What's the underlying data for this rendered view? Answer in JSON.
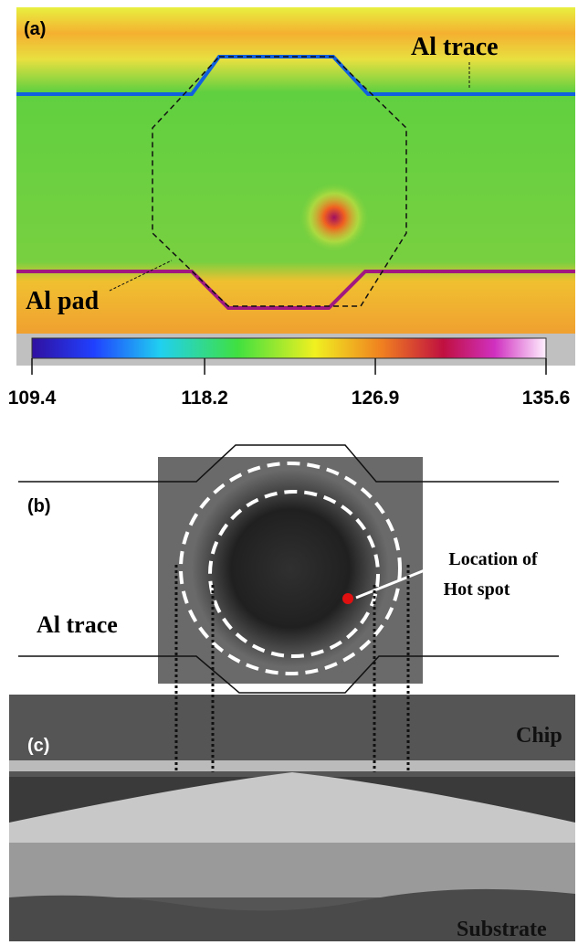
{
  "panels": {
    "a": {
      "label": "(a)",
      "trace_label": "Al trace",
      "pad_label": "Al pad",
      "colorbar_ticks": [
        109.4,
        118.2,
        126.9,
        135.6
      ]
    },
    "b": {
      "label": "(b)",
      "trace_label": "Al trace",
      "hotspot_label": [
        "Location of",
        "Hot spot"
      ]
    },
    "c": {
      "label": "(c)",
      "top_label": "Chip",
      "bottom_label": "Substrate"
    }
  }
}
